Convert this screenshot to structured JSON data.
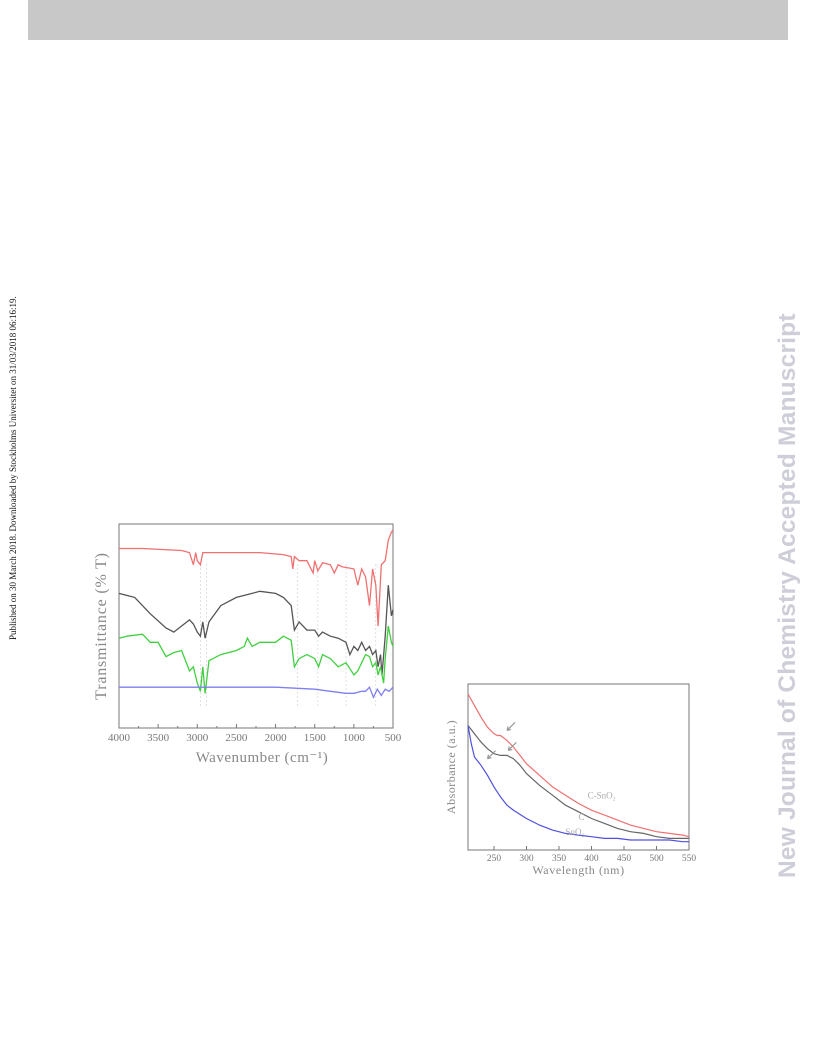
{
  "header_bar": {
    "color": "#c8c8c8"
  },
  "side_note": "Published on 30 March 2018. Downloaded by Stockholms Universitet on 31/03/2018 06:16:19.",
  "watermark": "New Journal of Chemistry Accepted Manuscript",
  "chart_data": [
    {
      "type": "line",
      "xlabel": "Wavenumber (cm⁻¹)",
      "ylabel": "Transmittance (% T)",
      "xlim": [
        4000,
        500
      ],
      "x_reversed": true,
      "x_ticks": [
        4000,
        3500,
        3000,
        2500,
        2000,
        1500,
        1000,
        500
      ],
      "x_tick_labels": [
        "4000",
        "3500",
        "3000",
        "2500",
        "2000",
        "1500",
        "1000",
        "500"
      ],
      "grid": false,
      "colors": [
        "#f07070",
        "#555555",
        "#40d040",
        "#7f7ff0"
      ],
      "series_note": "series labels at left end of curves are illegible in the image",
      "series_points": [
        {
          "x": [
            4000,
            3700,
            3200,
            3100,
            3050,
            3020,
            3000,
            2960,
            2930,
            2880,
            2700,
            2200,
            1900,
            1800,
            1780,
            1760,
            1700,
            1600,
            1520,
            1500,
            1460,
            1400,
            1300,
            1250,
            1200,
            1150,
            1000,
            950,
            900,
            850,
            800,
            760,
            720,
            690,
            650,
            600,
            560,
            520,
            500
          ],
          "y": [
            0.88,
            0.88,
            0.87,
            0.86,
            0.8,
            0.86,
            0.82,
            0.8,
            0.86,
            0.86,
            0.86,
            0.86,
            0.85,
            0.84,
            0.78,
            0.84,
            0.82,
            0.82,
            0.76,
            0.82,
            0.77,
            0.81,
            0.8,
            0.76,
            0.8,
            0.79,
            0.78,
            0.7,
            0.78,
            0.74,
            0.6,
            0.78,
            0.7,
            0.5,
            0.8,
            0.82,
            0.92,
            0.96,
            0.97
          ]
        },
        {
          "x": [
            4000,
            3800,
            3600,
            3400,
            3300,
            3200,
            3100,
            3050,
            3000,
            2960,
            2930,
            2900,
            2850,
            2700,
            2500,
            2300,
            2200,
            2000,
            1900,
            1800,
            1760,
            1700,
            1600,
            1500,
            1450,
            1400,
            1300,
            1200,
            1100,
            1050,
            1000,
            950,
            900,
            850,
            800,
            760,
            720,
            690,
            660,
            640,
            600,
            560,
            520,
            500
          ],
          "y": [
            0.66,
            0.64,
            0.56,
            0.49,
            0.47,
            0.5,
            0.53,
            0.51,
            0.47,
            0.45,
            0.52,
            0.44,
            0.52,
            0.6,
            0.64,
            0.66,
            0.67,
            0.66,
            0.64,
            0.6,
            0.48,
            0.52,
            0.48,
            0.48,
            0.45,
            0.47,
            0.45,
            0.44,
            0.42,
            0.36,
            0.4,
            0.38,
            0.42,
            0.38,
            0.4,
            0.36,
            0.38,
            0.3,
            0.36,
            0.26,
            0.45,
            0.7,
            0.55,
            0.58
          ]
        },
        {
          "x": [
            4000,
            3900,
            3700,
            3600,
            3500,
            3400,
            3300,
            3200,
            3100,
            3050,
            3000,
            2960,
            2930,
            2900,
            2850,
            2700,
            2500,
            2400,
            2360,
            2300,
            2200,
            2000,
            1900,
            1800,
            1760,
            1700,
            1600,
            1500,
            1450,
            1400,
            1300,
            1200,
            1100,
            1000,
            950,
            900,
            850,
            800,
            760,
            720,
            690,
            660,
            620,
            600,
            560,
            520,
            500
          ],
          "y": [
            0.44,
            0.45,
            0.46,
            0.42,
            0.42,
            0.35,
            0.37,
            0.38,
            0.28,
            0.3,
            0.22,
            0.18,
            0.3,
            0.17,
            0.33,
            0.36,
            0.38,
            0.4,
            0.44,
            0.4,
            0.42,
            0.42,
            0.45,
            0.43,
            0.3,
            0.34,
            0.36,
            0.34,
            0.3,
            0.36,
            0.34,
            0.3,
            0.32,
            0.26,
            0.28,
            0.32,
            0.36,
            0.35,
            0.3,
            0.32,
            0.26,
            0.3,
            0.22,
            0.34,
            0.5,
            0.42,
            0.4
          ]
        },
        {
          "x": [
            4000,
            3500,
            3000,
            2500,
            2000,
            1500,
            1300,
            1100,
            1000,
            900,
            850,
            800,
            750,
            700,
            650,
            600,
            550,
            500
          ],
          "y": [
            0.2,
            0.2,
            0.2,
            0.2,
            0.2,
            0.19,
            0.18,
            0.17,
            0.17,
            0.18,
            0.18,
            0.2,
            0.15,
            0.19,
            0.16,
            0.19,
            0.18,
            0.2
          ]
        }
      ],
      "annotation_note": "peak assignment labels near the bottom of the plot are illegible in the image"
    },
    {
      "type": "line",
      "xlabel": "Wavelength (nm)",
      "ylabel": "Absorbance (a.u.)",
      "xlim": [
        210,
        550
      ],
      "x_ticks": [
        250,
        300,
        350,
        400,
        450,
        500,
        550
      ],
      "x_tick_labels": [
        "250",
        "300",
        "350",
        "400",
        "450",
        "500",
        "550"
      ],
      "grid": false,
      "series": [
        {
          "name": "C-SnO₂",
          "color": "#f07070",
          "x": [
            210,
            220,
            230,
            240,
            250,
            255,
            260,
            270,
            280,
            290,
            300,
            320,
            340,
            360,
            380,
            400,
            420,
            440,
            460,
            480,
            500,
            520,
            540,
            550
          ],
          "y": [
            0.94,
            0.87,
            0.8,
            0.74,
            0.7,
            0.69,
            0.69,
            0.66,
            0.62,
            0.57,
            0.52,
            0.45,
            0.38,
            0.33,
            0.28,
            0.24,
            0.21,
            0.18,
            0.15,
            0.13,
            0.11,
            0.1,
            0.09,
            0.08
          ]
        },
        {
          "name": "C",
          "color": "#666666",
          "x": [
            210,
            220,
            230,
            240,
            250,
            260,
            270,
            280,
            290,
            300,
            320,
            340,
            360,
            380,
            400,
            420,
            440,
            460,
            480,
            500,
            520,
            540,
            550
          ],
          "y": [
            0.75,
            0.7,
            0.65,
            0.61,
            0.58,
            0.57,
            0.57,
            0.55,
            0.51,
            0.46,
            0.39,
            0.33,
            0.27,
            0.23,
            0.19,
            0.16,
            0.13,
            0.11,
            0.1,
            0.08,
            0.07,
            0.07,
            0.07
          ]
        },
        {
          "name": "SnO₂",
          "color": "#5050e0",
          "x": [
            210,
            215,
            220,
            230,
            240,
            250,
            260,
            270,
            280,
            300,
            320,
            340,
            360,
            380,
            400,
            420,
            440,
            460,
            480,
            500,
            520,
            540,
            550
          ],
          "y": [
            0.75,
            0.64,
            0.56,
            0.51,
            0.45,
            0.38,
            0.32,
            0.27,
            0.24,
            0.19,
            0.15,
            0.12,
            0.1,
            0.09,
            0.08,
            0.07,
            0.07,
            0.06,
            0.06,
            0.06,
            0.06,
            0.05,
            0.05
          ]
        }
      ],
      "arrows_note": "small gray arrows mark shoulders on the C-SnO₂ and C curves"
    }
  ]
}
